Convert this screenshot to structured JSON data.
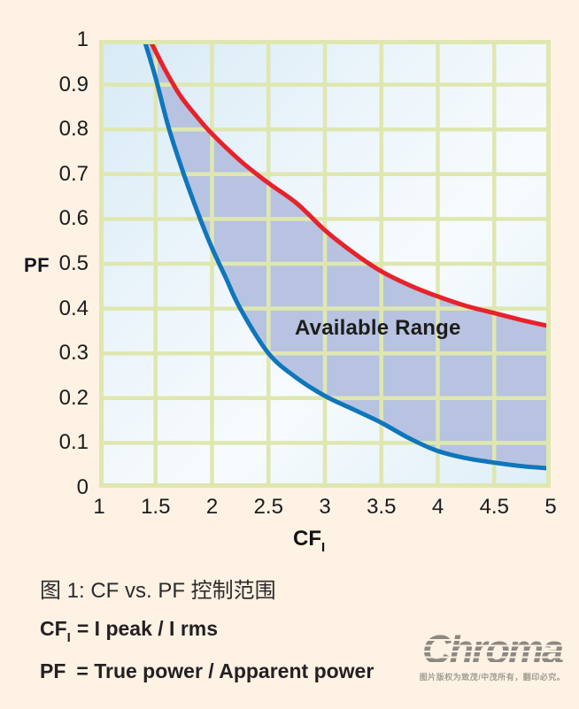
{
  "chart_data": {
    "type": "line",
    "title": "",
    "xlabel_base": "CF",
    "xlabel_sub": "I",
    "ylabel": "PF",
    "xlim": [
      1,
      5
    ],
    "ylim": [
      0,
      1
    ],
    "grid": true,
    "legend": "none",
    "annotation": "Available Range",
    "x_ticks": [
      1,
      1.5,
      2,
      2.5,
      3,
      3.5,
      4,
      4.5,
      5
    ],
    "y_ticks": [
      0,
      0.1,
      0.2,
      0.3,
      0.4,
      0.5,
      0.6,
      0.7,
      0.8,
      0.9,
      1
    ],
    "x_tick_labels": [
      "1",
      "1.5",
      "2",
      "2.5",
      "3",
      "3.5",
      "4",
      "4.5",
      "5"
    ],
    "y_tick_labels_top_to_bottom": [
      "1",
      "0.9",
      "0.8",
      "0.7",
      "0.6",
      "0.5",
      "0.4",
      "0.3",
      "0.2",
      "0.1",
      "0"
    ],
    "series": [
      {
        "name": "upper-limit-red",
        "color": "#e7222c",
        "points": [
          [
            1.45,
            1.0
          ],
          [
            1.58,
            0.935
          ],
          [
            1.72,
            0.875
          ],
          [
            1.86,
            0.83
          ],
          [
            2.0,
            0.79
          ],
          [
            2.25,
            0.73
          ],
          [
            2.5,
            0.68
          ],
          [
            2.75,
            0.635
          ],
          [
            3.0,
            0.575
          ],
          [
            3.25,
            0.525
          ],
          [
            3.5,
            0.483
          ],
          [
            3.75,
            0.452
          ],
          [
            4.0,
            0.427
          ],
          [
            4.25,
            0.406
          ],
          [
            4.5,
            0.39
          ],
          [
            4.75,
            0.374
          ],
          [
            5.0,
            0.36
          ]
        ]
      },
      {
        "name": "lower-limit-blue",
        "color": "#0f76bc",
        "points": [
          [
            1.4,
            1.0
          ],
          [
            1.5,
            0.915
          ],
          [
            1.62,
            0.8
          ],
          [
            1.75,
            0.7
          ],
          [
            1.88,
            0.61
          ],
          [
            2.0,
            0.535
          ],
          [
            2.12,
            0.47
          ],
          [
            2.25,
            0.4
          ],
          [
            2.5,
            0.3
          ],
          [
            2.75,
            0.245
          ],
          [
            3.0,
            0.205
          ],
          [
            3.25,
            0.175
          ],
          [
            3.5,
            0.145
          ],
          [
            3.75,
            0.11
          ],
          [
            4.0,
            0.082
          ],
          [
            4.25,
            0.066
          ],
          [
            4.5,
            0.056
          ],
          [
            4.75,
            0.048
          ],
          [
            5.0,
            0.043
          ]
        ]
      }
    ],
    "band_fill": "#b7c3e0",
    "grid_color": "#dfe7b0",
    "plot_bg_from": "#d7eaf6",
    "plot_bg_mid": "#f7fbfd",
    "plot_bg_to": "#ddeef7"
  },
  "axis": {
    "y_title": "PF",
    "x_title_base": "CF",
    "x_title_sub": "I"
  },
  "caption": "图 1: CF vs. PF 控制范围",
  "formulas": {
    "cf": {
      "base": "CF",
      "sub": "I",
      "rest": "= I peak / I rms"
    },
    "pf": {
      "base": "PF",
      "rest": "= True power / Apparent power"
    }
  },
  "branding": {
    "logo_text": "Chroma",
    "copyright": "图片版权为致茂/中茂所有，翻印必究。"
  },
  "colors": {
    "page_bg": "#fdf2e4",
    "red_curve": "#e7222c",
    "blue_curve": "#0f76bc",
    "band": "#b7c3e0",
    "gridline": "#dfe7b0",
    "text": "#1b1b1b"
  }
}
